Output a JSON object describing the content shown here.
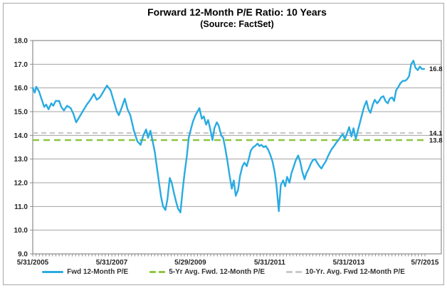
{
  "chart": {
    "title": "Forward 12-Month P/E Ratio: 10 Years",
    "subtitle": "(Source: FactSet)"
  },
  "chart_data": {
    "type": "line",
    "title": "Forward 12-Month P/E Ratio: 10 Years",
    "subtitle": "(Source: FactSet)",
    "xlabel": "",
    "ylabel": "",
    "ylim": [
      9.0,
      18.0
    ],
    "y_tick_step": 1.0,
    "x_range": [
      2005.42,
      2015.35
    ],
    "grid": "horizontal",
    "legend_position": "bottom",
    "x_ticks": [
      {
        "label": "5/31/2005",
        "t": 2005.42
      },
      {
        "label": "5/31/2007",
        "t": 2007.42
      },
      {
        "label": "5/29/2009",
        "t": 2009.41
      },
      {
        "label": "5/31/2011",
        "t": 2011.42
      },
      {
        "label": "5/31/2013",
        "t": 2013.42
      },
      {
        "label": "5/7/2015",
        "t": 2015.35
      }
    ],
    "series": [
      {
        "name": "Fwd 12-Month P/E",
        "color": "#29ABE2",
        "style": "solid",
        "points": [
          [
            2005.42,
            16.0
          ],
          [
            2005.47,
            15.8
          ],
          [
            2005.51,
            16.05
          ],
          [
            2005.58,
            15.85
          ],
          [
            2005.64,
            15.55
          ],
          [
            2005.71,
            15.2
          ],
          [
            2005.76,
            15.3
          ],
          [
            2005.82,
            15.1
          ],
          [
            2005.89,
            15.35
          ],
          [
            2005.94,
            15.25
          ],
          [
            2006.0,
            15.45
          ],
          [
            2006.09,
            15.45
          ],
          [
            2006.14,
            15.2
          ],
          [
            2006.21,
            15.05
          ],
          [
            2006.29,
            15.25
          ],
          [
            2006.38,
            15.15
          ],
          [
            2006.45,
            14.9
          ],
          [
            2006.52,
            14.55
          ],
          [
            2006.61,
            14.8
          ],
          [
            2006.7,
            15.05
          ],
          [
            2006.79,
            15.3
          ],
          [
            2006.88,
            15.5
          ],
          [
            2006.97,
            15.75
          ],
          [
            2007.04,
            15.5
          ],
          [
            2007.12,
            15.6
          ],
          [
            2007.21,
            15.85
          ],
          [
            2007.3,
            16.1
          ],
          [
            2007.39,
            15.9
          ],
          [
            2007.48,
            15.4
          ],
          [
            2007.55,
            15.0
          ],
          [
            2007.6,
            14.85
          ],
          [
            2007.68,
            15.2
          ],
          [
            2007.75,
            15.55
          ],
          [
            2007.82,
            15.1
          ],
          [
            2007.89,
            14.85
          ],
          [
            2007.98,
            14.2
          ],
          [
            2008.07,
            13.75
          ],
          [
            2008.15,
            13.6
          ],
          [
            2008.22,
            14.0
          ],
          [
            2008.29,
            14.25
          ],
          [
            2008.34,
            13.9
          ],
          [
            2008.4,
            14.2
          ],
          [
            2008.45,
            13.8
          ],
          [
            2008.51,
            13.3
          ],
          [
            2008.56,
            12.7
          ],
          [
            2008.61,
            12.1
          ],
          [
            2008.67,
            11.4
          ],
          [
            2008.72,
            11.0
          ],
          [
            2008.78,
            10.85
          ],
          [
            2008.83,
            11.3
          ],
          [
            2008.89,
            12.2
          ],
          [
            2008.94,
            12.0
          ],
          [
            2008.99,
            11.6
          ],
          [
            2009.05,
            11.2
          ],
          [
            2009.1,
            10.9
          ],
          [
            2009.16,
            10.75
          ],
          [
            2009.21,
            11.6
          ],
          [
            2009.26,
            12.35
          ],
          [
            2009.32,
            13.1
          ],
          [
            2009.37,
            13.9
          ],
          [
            2009.43,
            14.3
          ],
          [
            2009.48,
            14.6
          ],
          [
            2009.54,
            14.85
          ],
          [
            2009.59,
            15.0
          ],
          [
            2009.64,
            15.15
          ],
          [
            2009.7,
            14.7
          ],
          [
            2009.75,
            14.8
          ],
          [
            2009.81,
            14.45
          ],
          [
            2009.86,
            14.65
          ],
          [
            2009.91,
            14.3
          ],
          [
            2009.97,
            13.8
          ],
          [
            2010.02,
            14.3
          ],
          [
            2010.08,
            14.55
          ],
          [
            2010.13,
            14.4
          ],
          [
            2010.19,
            14.0
          ],
          [
            2010.24,
            13.9
          ],
          [
            2010.29,
            13.5
          ],
          [
            2010.35,
            12.9
          ],
          [
            2010.4,
            12.35
          ],
          [
            2010.46,
            11.75
          ],
          [
            2010.51,
            12.1
          ],
          [
            2010.56,
            11.45
          ],
          [
            2010.62,
            11.7
          ],
          [
            2010.67,
            12.3
          ],
          [
            2010.73,
            12.7
          ],
          [
            2010.78,
            12.85
          ],
          [
            2010.84,
            12.7
          ],
          [
            2010.89,
            13.0
          ],
          [
            2010.94,
            13.35
          ],
          [
            2011.0,
            13.5
          ],
          [
            2011.05,
            13.55
          ],
          [
            2011.11,
            13.65
          ],
          [
            2011.16,
            13.55
          ],
          [
            2011.21,
            13.6
          ],
          [
            2011.27,
            13.5
          ],
          [
            2011.32,
            13.55
          ],
          [
            2011.38,
            13.4
          ],
          [
            2011.43,
            13.2
          ],
          [
            2011.49,
            12.9
          ],
          [
            2011.54,
            12.5
          ],
          [
            2011.59,
            11.9
          ],
          [
            2011.65,
            10.8
          ],
          [
            2011.7,
            11.9
          ],
          [
            2011.76,
            12.1
          ],
          [
            2011.81,
            11.85
          ],
          [
            2011.86,
            12.25
          ],
          [
            2011.92,
            12.0
          ],
          [
            2011.97,
            12.4
          ],
          [
            2012.03,
            12.7
          ],
          [
            2012.08,
            12.95
          ],
          [
            2012.14,
            13.15
          ],
          [
            2012.19,
            12.9
          ],
          [
            2012.24,
            12.5
          ],
          [
            2012.3,
            12.15
          ],
          [
            2012.35,
            12.4
          ],
          [
            2012.41,
            12.6
          ],
          [
            2012.46,
            12.8
          ],
          [
            2012.51,
            12.95
          ],
          [
            2012.57,
            13.0
          ],
          [
            2012.62,
            12.85
          ],
          [
            2012.68,
            12.7
          ],
          [
            2012.73,
            12.6
          ],
          [
            2012.78,
            12.75
          ],
          [
            2012.84,
            12.9
          ],
          [
            2012.89,
            13.1
          ],
          [
            2012.95,
            13.3
          ],
          [
            2013.0,
            13.45
          ],
          [
            2013.05,
            13.55
          ],
          [
            2013.11,
            13.7
          ],
          [
            2013.16,
            13.8
          ],
          [
            2013.22,
            13.95
          ],
          [
            2013.27,
            14.05
          ],
          [
            2013.32,
            13.85
          ],
          [
            2013.38,
            14.1
          ],
          [
            2013.43,
            14.35
          ],
          [
            2013.49,
            13.95
          ],
          [
            2013.54,
            14.3
          ],
          [
            2013.6,
            13.85
          ],
          [
            2013.65,
            14.2
          ],
          [
            2013.7,
            14.5
          ],
          [
            2013.76,
            14.9
          ],
          [
            2013.81,
            15.2
          ],
          [
            2013.87,
            15.45
          ],
          [
            2013.92,
            15.1
          ],
          [
            2013.97,
            14.95
          ],
          [
            2014.03,
            15.3
          ],
          [
            2014.08,
            15.5
          ],
          [
            2014.14,
            15.35
          ],
          [
            2014.19,
            15.45
          ],
          [
            2014.24,
            15.6
          ],
          [
            2014.3,
            15.65
          ],
          [
            2014.35,
            15.45
          ],
          [
            2014.41,
            15.35
          ],
          [
            2014.46,
            15.55
          ],
          [
            2014.52,
            15.6
          ],
          [
            2014.57,
            15.45
          ],
          [
            2014.62,
            15.9
          ],
          [
            2014.68,
            16.05
          ],
          [
            2014.73,
            16.2
          ],
          [
            2014.79,
            16.3
          ],
          [
            2014.84,
            16.3
          ],
          [
            2014.89,
            16.35
          ],
          [
            2014.95,
            16.5
          ],
          [
            2015.0,
            17.0
          ],
          [
            2015.06,
            17.15
          ],
          [
            2015.11,
            16.85
          ],
          [
            2015.17,
            16.75
          ],
          [
            2015.22,
            16.9
          ],
          [
            2015.27,
            16.8
          ],
          [
            2015.33,
            16.8
          ]
        ]
      },
      {
        "name": "5-Yr Avg. Fwd. 12-Month P/E",
        "color": "#8DC63F",
        "style": "dashed",
        "value": 13.8,
        "width": 2.6,
        "dash": "9 6"
      },
      {
        "name": "10-Yr. Avg. Fwd 12-Month P/E",
        "color": "#C9C9C9",
        "style": "dashed",
        "value": 14.1,
        "width": 2.2,
        "dash": "7 5"
      }
    ],
    "end_labels": [
      {
        "text": "16.8",
        "value": 16.82
      },
      {
        "text": "14.1",
        "value": 14.1
      },
      {
        "text": "13.8",
        "value": 13.8
      }
    ],
    "colors": {
      "grid": "#A3A3A3",
      "plot_border": "#8C8C8C",
      "text": "#262626"
    }
  }
}
